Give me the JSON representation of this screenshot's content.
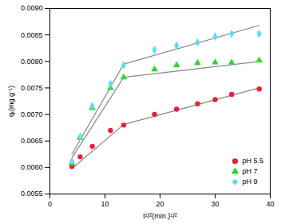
{
  "chart_data": {
    "type": "scatter",
    "x_label": "t¹/²(min.)¹/²",
    "y_label": "qₜ(mg.g⁻¹)",
    "xlim": [
      0,
      40
    ],
    "xticks": [
      0,
      10,
      20,
      30,
      40
    ],
    "ylim": [
      0.0055,
      0.009
    ],
    "yticks": [
      0.0055,
      {
        "value": 0.006,
        "label": "0.0060"
      },
      0.0065,
      {
        "value": 0.007,
        "label": "0.0070"
      },
      0.0075,
      {
        "value": 0.008,
        "label": "0.0080"
      },
      0.0085,
      {
        "value": 0.009,
        "label": "0.0090"
      }
    ],
    "legend": "lower right",
    "x": [
      4,
      5.5,
      7.7,
      11,
      13.4,
      19,
      23,
      26.8,
      30,
      33,
      38
    ],
    "series": [
      {
        "name": "pH 5.5",
        "color": "#e8203a",
        "marker": "circle",
        "values": [
          0.00602,
          0.0062,
          0.0064,
          0.0067,
          0.0068,
          0.007,
          0.0071,
          0.0072,
          0.00728,
          0.00738,
          0.00748
        ],
        "fit": [
          [
            [
              4,
              0.00598
            ],
            [
              13.4,
              0.00681
            ]
          ],
          [
            [
              13.4,
              0.00681
            ],
            [
              38,
              0.0075
            ]
          ]
        ]
      },
      {
        "name": "pH 7",
        "color": "#2fd52f",
        "marker": "triangle",
        "values": [
          0.00608,
          0.00656,
          0.00712,
          0.0075,
          0.0077,
          0.00785,
          0.00793,
          0.00797,
          0.00798,
          0.00798,
          0.00802
        ],
        "fit": [
          [
            [
              4,
              0.00618
            ],
            [
              13.4,
              0.0077
            ]
          ],
          [
            [
              13.4,
              0.0077
            ],
            [
              38,
              0.008
            ]
          ]
        ]
      },
      {
        "name": "pH 9",
        "color": "#5fdcef",
        "marker": "diamond",
        "values": [
          0.00612,
          0.00658,
          0.00716,
          0.00757,
          0.00793,
          0.00822,
          0.0083,
          0.00836,
          0.00847,
          0.00852,
          0.00852
        ],
        "fit": [
          [
            [
              4,
              0.00625
            ],
            [
              13.4,
              0.00795
            ]
          ],
          [
            [
              13.4,
              0.00795
            ],
            [
              38,
              0.00868
            ]
          ]
        ]
      }
    ]
  }
}
